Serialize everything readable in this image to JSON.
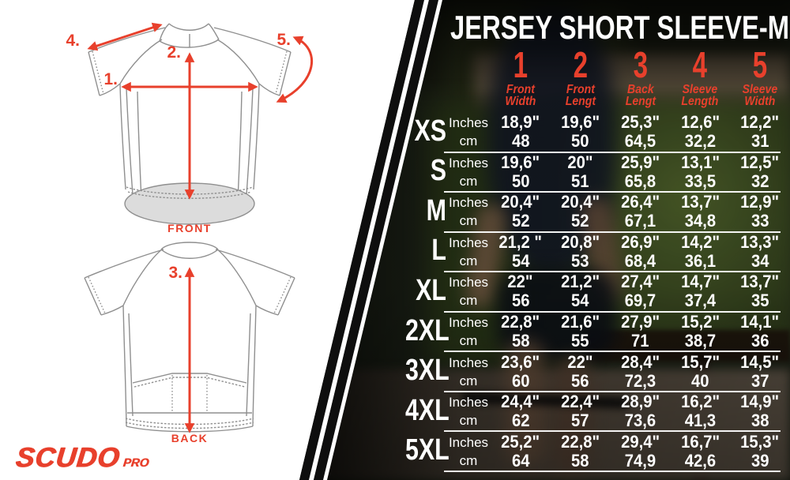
{
  "brand": {
    "logo_main": "SCUDO",
    "logo_sub": "PRO"
  },
  "colors": {
    "accent_red": "#e8402c",
    "text_white": "#ffffff",
    "stripe_black": "#0e0e0e"
  },
  "diagrams": {
    "front_label": "FRONT",
    "back_label": "BACK",
    "markers": {
      "m1": "1.",
      "m2": "2.",
      "m3": "3.",
      "m4": "4.",
      "m5": "5."
    }
  },
  "chart_data": {
    "type": "table",
    "title": "JERSEY SHORT SLEEVE-MAN",
    "units": {
      "inches": "Inches",
      "cm": "cm"
    },
    "columns": [
      {
        "num": "1",
        "label": [
          "Front",
          "Width"
        ]
      },
      {
        "num": "2",
        "label": [
          "Front",
          "Lengt"
        ]
      },
      {
        "num": "3",
        "label": [
          "Back",
          "Lengt"
        ]
      },
      {
        "num": "4",
        "label": [
          "Sleeve",
          "Length"
        ]
      },
      {
        "num": "5",
        "label": [
          "Sleeve",
          "Width"
        ]
      }
    ],
    "rows": [
      {
        "size": "XS",
        "inches": [
          "18,9\"",
          "19,6\"",
          "25,3\"",
          "12,6\"",
          "12,2\""
        ],
        "cm": [
          "48",
          "50",
          "64,5",
          "32,2",
          "31"
        ]
      },
      {
        "size": "S",
        "inches": [
          "19,6\"",
          "20\"",
          "25,9\"",
          "13,1\"",
          "12,5\""
        ],
        "cm": [
          "50",
          "51",
          "65,8",
          "33,5",
          "32"
        ]
      },
      {
        "size": "M",
        "inches": [
          "20,4\"",
          "20,4\"",
          "26,4\"",
          "13,7\"",
          "12,9\""
        ],
        "cm": [
          "52",
          "52",
          "67,1",
          "34,8",
          "33"
        ]
      },
      {
        "size": "L",
        "inches": [
          "21,2 \"",
          "20,8\"",
          "26,9\"",
          "14,2\"",
          "13,3\""
        ],
        "cm": [
          "54",
          "53",
          "68,4",
          "36,1",
          "34"
        ]
      },
      {
        "size": "XL",
        "inches": [
          "22\"",
          "21,2\"",
          "27,4\"",
          "14,7\"",
          "13,7\""
        ],
        "cm": [
          "56",
          "54",
          "69,7",
          "37,4",
          "35"
        ]
      },
      {
        "size": "2XL",
        "inches": [
          "22,8\"",
          "21,6\"",
          "27,9\"",
          "15,2\"",
          "14,1\""
        ],
        "cm": [
          "58",
          "55",
          "71",
          "38,7",
          "36"
        ]
      },
      {
        "size": "3XL",
        "inches": [
          "23,6\"",
          "22\"",
          "28,4\"",
          "15,7\"",
          "14,5\""
        ],
        "cm": [
          "60",
          "56",
          "72,3",
          "40",
          "37"
        ]
      },
      {
        "size": "4XL",
        "inches": [
          "24,4\"",
          "22,4\"",
          "28,9\"",
          "16,2\"",
          "14,9\""
        ],
        "cm": [
          "62",
          "57",
          "73,6",
          "41,3",
          "38"
        ]
      },
      {
        "size": "5XL",
        "inches": [
          "25,2\"",
          "22,8\"",
          "29,4\"",
          "16,7\"",
          "15,3\""
        ],
        "cm": [
          "64",
          "58",
          "74,9",
          "42,6",
          "39"
        ]
      }
    ]
  }
}
